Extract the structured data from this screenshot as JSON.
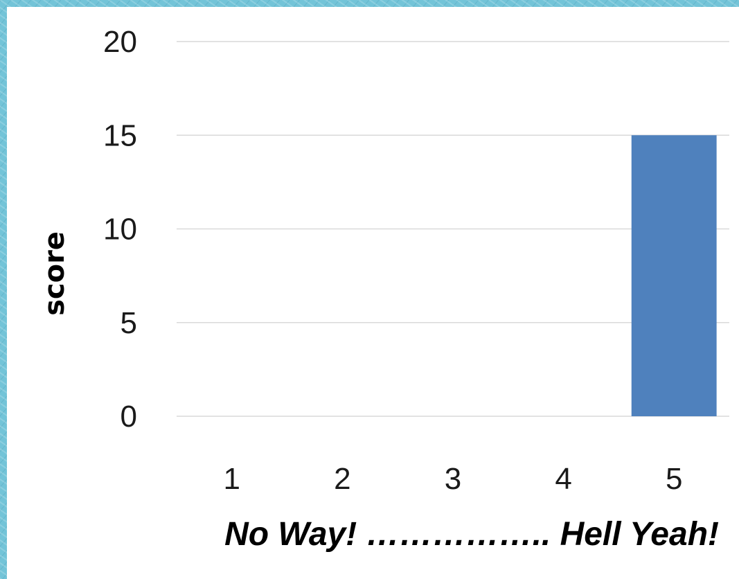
{
  "colors": {
    "bar": "#4f81bd",
    "grid": "#d9d9d9",
    "frame": "#73c4d8"
  },
  "chart_data": {
    "type": "bar",
    "categories": [
      "1",
      "2",
      "3",
      "4",
      "5"
    ],
    "values": [
      0,
      0,
      0,
      0,
      15
    ],
    "title": "",
    "xlabel": "No Way!  ……………..  Hell Yeah!",
    "ylabel": "score",
    "ylim": [
      0,
      20
    ],
    "yticks": [
      "0",
      "5",
      "10",
      "15",
      "20"
    ],
    "grid": true,
    "legend": "none"
  }
}
